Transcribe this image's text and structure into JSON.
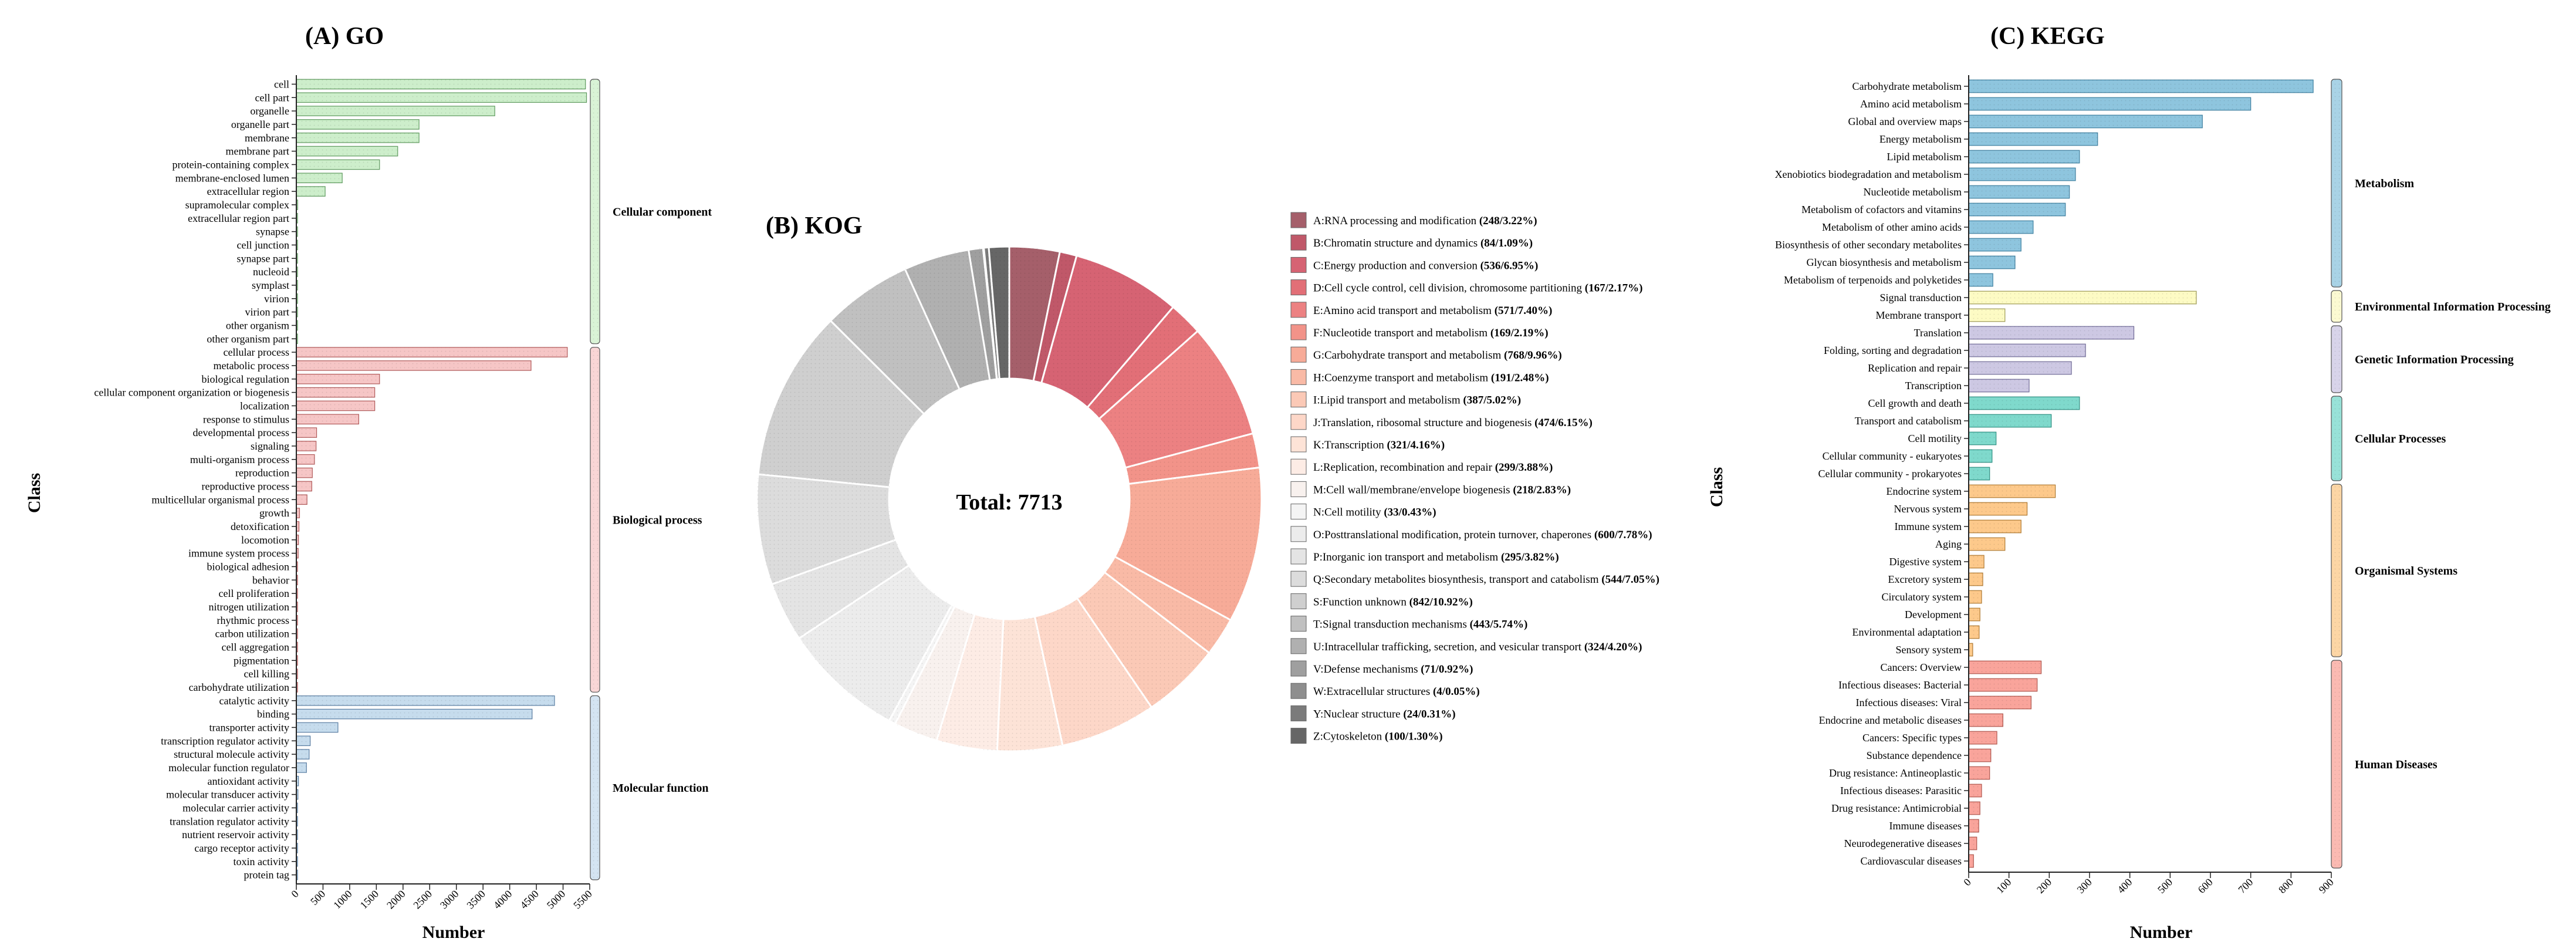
{
  "go": {
    "title": "(A) GO",
    "xlabel": "Number",
    "ylabel": "Class",
    "xticks": [
      "0",
      "500",
      "1000",
      "1500",
      "2000",
      "2500",
      "3000",
      "3500",
      "4000",
      "4500",
      "5000",
      "5500"
    ],
    "groups": [
      {
        "name": "Cellular component",
        "color": "#cdeecb",
        "stroke": "#5f9a5f",
        "bracket": "#d9f3d6",
        "items": [
          [
            "cell",
            5420
          ],
          [
            "cell part",
            5440
          ],
          [
            "organelle",
            3720
          ],
          [
            "organelle part",
            2300
          ],
          [
            "membrane",
            2300
          ],
          [
            "membrane part",
            1900
          ],
          [
            "protein-containing complex",
            1560
          ],
          [
            "membrane-enclosed lumen",
            860
          ],
          [
            "extracellular region",
            540
          ],
          [
            "supramolecular complex",
            25
          ],
          [
            "extracellular region part",
            15
          ],
          [
            "synapse",
            5
          ],
          [
            "cell junction",
            5
          ],
          [
            "synapse part",
            3
          ],
          [
            "nucleoid",
            3
          ],
          [
            "symplast",
            2
          ],
          [
            "virion",
            2
          ],
          [
            "virion part",
            2
          ],
          [
            "other organism",
            2
          ],
          [
            "other organism part",
            1
          ]
        ]
      },
      {
        "name": "Biological process",
        "color": "#f6c6c6",
        "stroke": "#b05a5a",
        "bracket": "#f9d6d6",
        "items": [
          [
            "cellular process",
            5080
          ],
          [
            "metabolic process",
            4400
          ],
          [
            "biological regulation",
            1560
          ],
          [
            "cellular component organization or biogenesis",
            1470
          ],
          [
            "localization",
            1470
          ],
          [
            "response to stimulus",
            1170
          ],
          [
            "developmental process",
            380
          ],
          [
            "signaling",
            370
          ],
          [
            "multi-organism process",
            340
          ],
          [
            "reproduction",
            300
          ],
          [
            "reproductive process",
            290
          ],
          [
            "multicellular organismal process",
            200
          ],
          [
            "growth",
            60
          ],
          [
            "detoxification",
            50
          ],
          [
            "locomotion",
            40
          ],
          [
            "immune system process",
            35
          ],
          [
            "biological adhesion",
            20
          ],
          [
            "behavior",
            15
          ],
          [
            "cell proliferation",
            10
          ],
          [
            "nitrogen utilization",
            8
          ],
          [
            "rhythmic process",
            8
          ],
          [
            "carbon utilization",
            6
          ],
          [
            "cell aggregation",
            5
          ],
          [
            "pigmentation",
            4
          ],
          [
            "cell killing",
            3
          ],
          [
            "carbohydrate utilization",
            2
          ]
        ]
      },
      {
        "name": "Molecular function",
        "color": "#c6dced",
        "stroke": "#5a7ea3",
        "bracket": "#d4e4f2",
        "items": [
          [
            "catalytic activity",
            4840
          ],
          [
            "binding",
            4420
          ],
          [
            "transporter activity",
            780
          ],
          [
            "transcription regulator activity",
            260
          ],
          [
            "structural molecule activity",
            240
          ],
          [
            "molecular function regulator",
            190
          ],
          [
            "antioxidant activity",
            40
          ],
          [
            "molecular transducer activity",
            30
          ],
          [
            "molecular carrier activity",
            10
          ],
          [
            "translation regulator activity",
            8
          ],
          [
            "nutrient reservoir activity",
            4
          ],
          [
            "cargo receptor activity",
            3
          ],
          [
            "toxin activity",
            2
          ],
          [
            "protein tag",
            1
          ]
        ]
      }
    ]
  },
  "kog": {
    "title": "(B) KOG",
    "center": "Total: 7713",
    "items": [
      {
        "name": "A:RNA processing and modification",
        "stat": "(248/3.22%)",
        "value": 248,
        "color": "#a55f6a"
      },
      {
        "name": "B:Chromatin structure and dynamics",
        "stat": "(84/1.09%)",
        "value": 84,
        "color": "#c05869"
      },
      {
        "name": "C:Energy production and conversion",
        "stat": "(536/6.95%)",
        "value": 536,
        "color": "#d66373"
      },
      {
        "name": "D:Cell cycle control, cell division, chromosome partitioning",
        "stat": "(167/2.17%)",
        "value": 167,
        "color": "#e26f77"
      },
      {
        "name": "E:Amino acid transport and metabolism",
        "stat": "(571/7.40%)",
        "value": 571,
        "color": "#ec8182"
      },
      {
        "name": "F:Nucleotide transport and metabolism",
        "stat": "(169/2.19%)",
        "value": 169,
        "color": "#f29389"
      },
      {
        "name": "G:Carbohydrate transport and metabolism",
        "stat": "(768/9.96%)",
        "value": 768,
        "color": "#f7ab98"
      },
      {
        "name": "H:Coenzyme transport and metabolism",
        "stat": "(191/2.48%)",
        "value": 191,
        "color": "#f9baa6"
      },
      {
        "name": "I:Lipid transport and metabolism",
        "stat": "(387/5.02%)",
        "value": 387,
        "color": "#fbc9b6"
      },
      {
        "name": "J:Translation, ribosomal structure and biogenesis",
        "stat": "(474/6.15%)",
        "value": 474,
        "color": "#fdd7c8"
      },
      {
        "name": "K:Transcription",
        "stat": "(321/4.16%)",
        "value": 321,
        "color": "#fde3d7"
      },
      {
        "name": "L:Replication, recombination and repair",
        "stat": "(299/3.88%)",
        "value": 299,
        "color": "#fdece5"
      },
      {
        "name": "M:Cell wall/membrane/envelope biogenesis",
        "stat": "(218/2.83%)",
        "value": 218,
        "color": "#f8f1ee"
      },
      {
        "name": "N:Cell motility",
        "stat": "(33/0.43%)",
        "value": 33,
        "color": "#f4f4f4"
      },
      {
        "name": "O:Posttranslational modification, protein turnover, chaperones",
        "stat": "(600/7.78%)",
        "value": 600,
        "color": "#ececec"
      },
      {
        "name": "P:Inorganic ion transport and metabolism",
        "stat": "(295/3.82%)",
        "value": 295,
        "color": "#e4e4e4"
      },
      {
        "name": "Q:Secondary metabolites biosynthesis, transport and catabolism",
        "stat": "(544/7.05%)",
        "value": 544,
        "color": "#dcdcdc"
      },
      {
        "name": "S:Function unknown",
        "stat": "(842/10.92%)",
        "value": 842,
        "color": "#cfcfcf"
      },
      {
        "name": "T:Signal transduction mechanisms",
        "stat": "(443/5.74%)",
        "value": 443,
        "color": "#c0c0c0"
      },
      {
        "name": "U:Intracellular trafficking, secretion, and vesicular transport",
        "stat": "(324/4.20%)",
        "value": 324,
        "color": "#b0b0b0"
      },
      {
        "name": "V:Defense mechanisms",
        "stat": "(71/0.92%)",
        "value": 71,
        "color": "#9f9f9f"
      },
      {
        "name": "W:Extracellular structures",
        "stat": "(4/0.05%)",
        "value": 4,
        "color": "#8e8e8e"
      },
      {
        "name": "Y:Nuclear structure",
        "stat": "(24/0.31%)",
        "value": 24,
        "color": "#7b7b7b"
      },
      {
        "name": "Z:Cytoskeleton",
        "stat": "(100/1.30%)",
        "value": 100,
        "color": "#666666"
      }
    ]
  },
  "kegg": {
    "title": "(C) KEGG",
    "xlabel": "Number",
    "ylabel": "Class",
    "xticks": [
      "0",
      "100",
      "200",
      "300",
      "400",
      "500",
      "600",
      "700",
      "800",
      "900"
    ],
    "groups": [
      {
        "name": "Metabolism",
        "color": "#8ec5de",
        "stroke": "#3f7f9f",
        "bracket": "#a9d3e6",
        "items": [
          [
            "Carbohydrate metabolism",
            855
          ],
          [
            "Amino acid metabolism",
            700
          ],
          [
            "Global and overview maps",
            580
          ],
          [
            "Energy metabolism",
            320
          ],
          [
            "Lipid metabolism",
            275
          ],
          [
            "Xenobiotics biodegradation and metabolism",
            265
          ],
          [
            "Nucleotide metabolism",
            250
          ],
          [
            "Metabolism of cofactors and vitamins",
            240
          ],
          [
            "Metabolism of other amino acids",
            160
          ],
          [
            "Biosynthesis of other secondary metabolites",
            130
          ],
          [
            "Glycan biosynthesis and metabolism",
            115
          ],
          [
            "Metabolism of terpenoids and polyketides",
            60
          ]
        ]
      },
      {
        "name": "Environmental Information Processing",
        "color": "#fdfbc4",
        "stroke": "#9d9a55",
        "bracket": "#fcfad2",
        "items": [
          [
            "Signal transduction",
            565
          ],
          [
            "Membrane transport",
            90
          ]
        ]
      },
      {
        "name": "Genetic Information Processing",
        "color": "#cdc8e3",
        "stroke": "#716b97",
        "bracket": "#d8d4ea",
        "items": [
          [
            "Translation",
            410
          ],
          [
            "Folding, sorting and degradation",
            290
          ],
          [
            "Replication and repair",
            255
          ],
          [
            "Transcription",
            150
          ]
        ]
      },
      {
        "name": "Cellular Processes",
        "color": "#7fd9cc",
        "stroke": "#2f8f82",
        "bracket": "#98e2d8",
        "items": [
          [
            "Cell growth and death",
            275
          ],
          [
            "Transport and catabolism",
            205
          ],
          [
            "Cell motility",
            68
          ],
          [
            "Cellular community - eukaryotes",
            58
          ],
          [
            "Cellular community - prokaryotes",
            52
          ]
        ]
      },
      {
        "name": "Organismal Systems",
        "color": "#fdc98b",
        "stroke": "#b07a32",
        "bracket": "#fdd6a5",
        "items": [
          [
            "Endocrine system",
            215
          ],
          [
            "Nervous system",
            145
          ],
          [
            "Immune system",
            130
          ],
          [
            "Aging",
            90
          ],
          [
            "Digestive system",
            38
          ],
          [
            "Excretory system",
            35
          ],
          [
            "Circulatory system",
            32
          ],
          [
            "Development",
            28
          ],
          [
            "Environmental adaptation",
            26
          ],
          [
            "Sensory system",
            10
          ]
        ]
      },
      {
        "name": "Human Diseases",
        "color": "#f9a49b",
        "stroke": "#b0574e",
        "bracket": "#fbbab2",
        "items": [
          [
            "Cancers: Overview",
            180
          ],
          [
            "Infectious diseases: Bacterial",
            170
          ],
          [
            "Infectious diseases: Viral",
            155
          ],
          [
            "Endocrine and metabolic diseases",
            85
          ],
          [
            "Cancers: Specific types",
            70
          ],
          [
            "Substance dependence",
            55
          ],
          [
            "Drug resistance: Antineoplastic",
            52
          ],
          [
            "Infectious diseases: Parasitic",
            32
          ],
          [
            "Drug resistance: Antimicrobial",
            28
          ],
          [
            "Immune diseases",
            25
          ],
          [
            "Neurodegenerative diseases",
            20
          ],
          [
            "Cardiovascular diseases",
            12
          ]
        ]
      }
    ]
  },
  "chart_data": [
    {
      "type": "bar",
      "title": "(A) GO",
      "xlabel": "Number",
      "ylabel": "Class",
      "xlim": [
        0,
        5500
      ],
      "orientation": "horizontal",
      "series_ref": "go.groups"
    },
    {
      "type": "pie",
      "title": "(B) KOG",
      "total": 7713,
      "series_ref": "kog.items"
    },
    {
      "type": "bar",
      "title": "(C) KEGG",
      "xlabel": "Number",
      "ylabel": "Class",
      "xlim": [
        0,
        900
      ],
      "orientation": "horizontal",
      "series_ref": "kegg.groups"
    }
  ]
}
